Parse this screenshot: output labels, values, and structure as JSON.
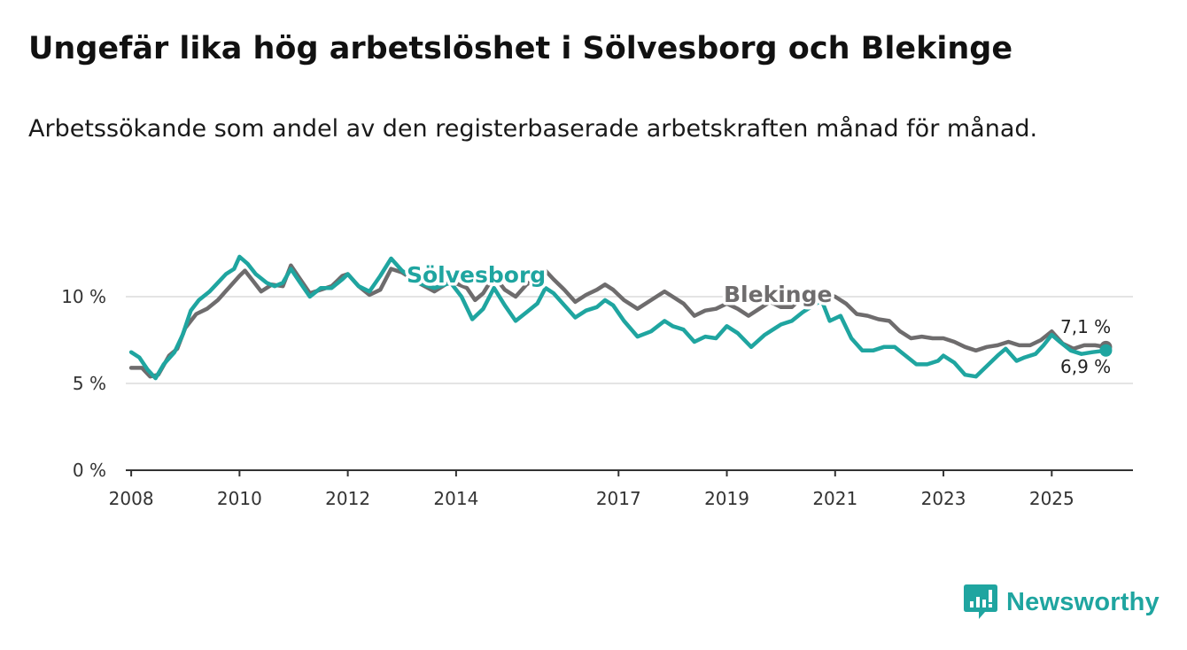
{
  "header": {
    "title": "Ungefär lika hög arbetslöshet i Sölvesborg och Blekinge",
    "subtitle": "Arbetssökande som andel av den registerbaserade arbetskraften månad för månad."
  },
  "brand": {
    "name": "Newsworthy",
    "icon": "newsworthy-logo-icon",
    "color": "#1fa5a0"
  },
  "chart_data": {
    "type": "line",
    "title": "Ungefär lika hög arbetslöshet i Sölvesborg och Blekinge",
    "xlabel": "",
    "ylabel": "",
    "ylim": [
      0,
      12.5
    ],
    "xlim": [
      2007.9,
      2026.5
    ],
    "grid": true,
    "y_ticks": [
      {
        "value": 0,
        "label": "0 %"
      },
      {
        "value": 5,
        "label": "5 %"
      },
      {
        "value": 10,
        "label": "10 %"
      }
    ],
    "x_ticks": [
      {
        "value": 2008,
        "label": "2008"
      },
      {
        "value": 2010,
        "label": "2010"
      },
      {
        "value": 2012,
        "label": "2012"
      },
      {
        "value": 2014,
        "label": "2014"
      },
      {
        "value": 2017,
        "label": "2017"
      },
      {
        "value": 2019,
        "label": "2019"
      },
      {
        "value": 2021,
        "label": "2021"
      },
      {
        "value": 2023,
        "label": "2023"
      },
      {
        "value": 2025,
        "label": "2025"
      }
    ],
    "series": [
      {
        "name": "Blekinge",
        "color": "#6e6c6d",
        "label": "Blekinge",
        "end_label": "7,1 %",
        "points": [
          [
            2008.0,
            5.9
          ],
          [
            2008.2,
            5.9
          ],
          [
            2008.35,
            5.4
          ],
          [
            2008.5,
            5.5
          ],
          [
            2008.7,
            6.6
          ],
          [
            2008.85,
            7.0
          ],
          [
            2009.0,
            8.2
          ],
          [
            2009.2,
            9.0
          ],
          [
            2009.4,
            9.3
          ],
          [
            2009.6,
            9.8
          ],
          [
            2009.8,
            10.5
          ],
          [
            2010.0,
            11.2
          ],
          [
            2010.1,
            11.5
          ],
          [
            2010.25,
            10.9
          ],
          [
            2010.4,
            10.3
          ],
          [
            2010.6,
            10.7
          ],
          [
            2010.8,
            10.6
          ],
          [
            2010.95,
            11.8
          ],
          [
            2011.1,
            11.1
          ],
          [
            2011.3,
            10.2
          ],
          [
            2011.5,
            10.4
          ],
          [
            2011.7,
            10.6
          ],
          [
            2011.9,
            11.2
          ],
          [
            2012.0,
            11.3
          ],
          [
            2012.2,
            10.6
          ],
          [
            2012.4,
            10.1
          ],
          [
            2012.6,
            10.4
          ],
          [
            2012.8,
            11.6
          ],
          [
            2013.0,
            11.4
          ],
          [
            2013.3,
            10.8
          ],
          [
            2013.6,
            10.3
          ],
          [
            2013.9,
            10.9
          ],
          [
            2014.2,
            10.5
          ],
          [
            2014.35,
            9.8
          ],
          [
            2014.5,
            10.2
          ],
          [
            2014.7,
            11.2
          ],
          [
            2014.9,
            10.4
          ],
          [
            2015.1,
            10.0
          ],
          [
            2015.3,
            10.7
          ],
          [
            2015.5,
            11.1
          ],
          [
            2015.65,
            11.5
          ],
          [
            2015.8,
            11.0
          ],
          [
            2016.0,
            10.4
          ],
          [
            2016.2,
            9.7
          ],
          [
            2016.4,
            10.1
          ],
          [
            2016.6,
            10.4
          ],
          [
            2016.75,
            10.7
          ],
          [
            2016.9,
            10.4
          ],
          [
            2017.1,
            9.8
          ],
          [
            2017.35,
            9.3
          ],
          [
            2017.6,
            9.8
          ],
          [
            2017.85,
            10.3
          ],
          [
            2018.0,
            10.0
          ],
          [
            2018.2,
            9.6
          ],
          [
            2018.4,
            8.9
          ],
          [
            2018.6,
            9.2
          ],
          [
            2018.8,
            9.3
          ],
          [
            2019.0,
            9.6
          ],
          [
            2019.2,
            9.3
          ],
          [
            2019.4,
            8.9
          ],
          [
            2019.6,
            9.3
          ],
          [
            2019.8,
            9.7
          ],
          [
            2020.0,
            9.4
          ],
          [
            2020.2,
            9.4
          ],
          [
            2020.4,
            10.0
          ],
          [
            2020.6,
            10.0
          ],
          [
            2020.8,
            10.2
          ],
          [
            2021.0,
            10.0
          ],
          [
            2021.2,
            9.6
          ],
          [
            2021.4,
            9.0
          ],
          [
            2021.6,
            8.9
          ],
          [
            2021.8,
            8.7
          ],
          [
            2022.0,
            8.6
          ],
          [
            2022.2,
            8.0
          ],
          [
            2022.4,
            7.6
          ],
          [
            2022.6,
            7.7
          ],
          [
            2022.8,
            7.6
          ],
          [
            2023.0,
            7.6
          ],
          [
            2023.2,
            7.4
          ],
          [
            2023.4,
            7.1
          ],
          [
            2023.6,
            6.9
          ],
          [
            2023.8,
            7.1
          ],
          [
            2024.0,
            7.2
          ],
          [
            2024.2,
            7.4
          ],
          [
            2024.4,
            7.2
          ],
          [
            2024.6,
            7.2
          ],
          [
            2024.8,
            7.5
          ],
          [
            2025.0,
            8.0
          ],
          [
            2025.2,
            7.3
          ],
          [
            2025.4,
            7.0
          ],
          [
            2025.6,
            7.2
          ],
          [
            2025.8,
            7.2
          ],
          [
            2026.0,
            7.1
          ]
        ]
      },
      {
        "name": "Sölvesborg",
        "color": "#1fa5a0",
        "label": "Sölvesborg",
        "end_label": "6,9 %",
        "points": [
          [
            2008.0,
            6.8
          ],
          [
            2008.15,
            6.5
          ],
          [
            2008.3,
            5.8
          ],
          [
            2008.45,
            5.3
          ],
          [
            2008.6,
            6.1
          ],
          [
            2008.8,
            6.8
          ],
          [
            2008.95,
            7.8
          ],
          [
            2009.1,
            9.2
          ],
          [
            2009.25,
            9.8
          ],
          [
            2009.45,
            10.3
          ],
          [
            2009.6,
            10.8
          ],
          [
            2009.75,
            11.3
          ],
          [
            2009.9,
            11.6
          ],
          [
            2010.0,
            12.3
          ],
          [
            2010.15,
            11.9
          ],
          [
            2010.3,
            11.3
          ],
          [
            2010.5,
            10.8
          ],
          [
            2010.65,
            10.6
          ],
          [
            2010.8,
            10.8
          ],
          [
            2010.95,
            11.6
          ],
          [
            2011.1,
            10.9
          ],
          [
            2011.3,
            10.0
          ],
          [
            2011.5,
            10.5
          ],
          [
            2011.7,
            10.5
          ],
          [
            2011.9,
            11.0
          ],
          [
            2012.0,
            11.3
          ],
          [
            2012.2,
            10.6
          ],
          [
            2012.4,
            10.3
          ],
          [
            2012.6,
            11.2
          ],
          [
            2012.8,
            12.2
          ],
          [
            2013.0,
            11.5
          ],
          [
            2013.3,
            10.8
          ],
          [
            2013.6,
            10.5
          ],
          [
            2013.9,
            10.8
          ],
          [
            2014.1,
            10.0
          ],
          [
            2014.3,
            8.7
          ],
          [
            2014.5,
            9.3
          ],
          [
            2014.7,
            10.5
          ],
          [
            2014.9,
            9.5
          ],
          [
            2015.1,
            8.6
          ],
          [
            2015.3,
            9.1
          ],
          [
            2015.5,
            9.6
          ],
          [
            2015.65,
            10.5
          ],
          [
            2015.8,
            10.2
          ],
          [
            2016.0,
            9.5
          ],
          [
            2016.2,
            8.8
          ],
          [
            2016.4,
            9.2
          ],
          [
            2016.6,
            9.4
          ],
          [
            2016.75,
            9.8
          ],
          [
            2016.9,
            9.5
          ],
          [
            2017.1,
            8.6
          ],
          [
            2017.35,
            7.7
          ],
          [
            2017.6,
            8.0
          ],
          [
            2017.85,
            8.6
          ],
          [
            2018.0,
            8.3
          ],
          [
            2018.2,
            8.1
          ],
          [
            2018.4,
            7.4
          ],
          [
            2018.6,
            7.7
          ],
          [
            2018.8,
            7.6
          ],
          [
            2019.0,
            8.3
          ],
          [
            2019.2,
            7.9
          ],
          [
            2019.45,
            7.1
          ],
          [
            2019.7,
            7.8
          ],
          [
            2019.9,
            8.2
          ],
          [
            2020.0,
            8.4
          ],
          [
            2020.2,
            8.6
          ],
          [
            2020.4,
            9.1
          ],
          [
            2020.6,
            9.5
          ],
          [
            2020.75,
            9.8
          ],
          [
            2020.9,
            8.6
          ],
          [
            2021.1,
            8.9
          ],
          [
            2021.3,
            7.6
          ],
          [
            2021.5,
            6.9
          ],
          [
            2021.7,
            6.9
          ],
          [
            2021.9,
            7.1
          ],
          [
            2022.1,
            7.1
          ],
          [
            2022.3,
            6.6
          ],
          [
            2022.5,
            6.1
          ],
          [
            2022.7,
            6.1
          ],
          [
            2022.9,
            6.3
          ],
          [
            2023.0,
            6.6
          ],
          [
            2023.2,
            6.2
          ],
          [
            2023.4,
            5.5
          ],
          [
            2023.6,
            5.4
          ],
          [
            2023.8,
            6.0
          ],
          [
            2024.0,
            6.6
          ],
          [
            2024.15,
            7.0
          ],
          [
            2024.35,
            6.3
          ],
          [
            2024.5,
            6.5
          ],
          [
            2024.7,
            6.7
          ],
          [
            2024.85,
            7.2
          ],
          [
            2025.0,
            7.8
          ],
          [
            2025.15,
            7.4
          ],
          [
            2025.35,
            6.9
          ],
          [
            2025.55,
            6.7
          ],
          [
            2025.75,
            6.8
          ],
          [
            2026.0,
            6.9
          ]
        ]
      }
    ]
  }
}
